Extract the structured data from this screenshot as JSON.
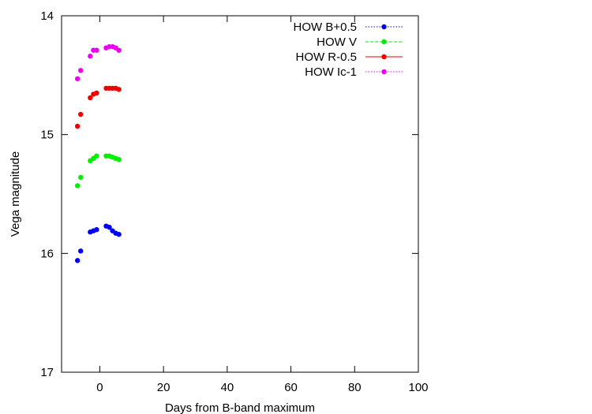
{
  "chart_data": {
    "type": "scatter",
    "title": "",
    "xlabel": "Days from B-band maximum",
    "ylabel": "Vega magnitude",
    "xlim": [
      -12,
      100
    ],
    "ylim": [
      17,
      14
    ],
    "y_inverted": true,
    "xticks": [
      "0",
      "20",
      "40",
      "60",
      "80",
      "100"
    ],
    "xtick_values": [
      0,
      20,
      40,
      60,
      80,
      100
    ],
    "yticks": [
      "14",
      "15",
      "16",
      "17"
    ],
    "ytick_values": [
      14,
      15,
      16,
      17
    ],
    "grid": false,
    "legend_position": "top-right",
    "series": [
      {
        "name": "HOW B+0.5",
        "color": "#0000ee",
        "line_style": "dotted",
        "points": [
          [
            -7,
            16.06
          ],
          [
            -6,
            15.98
          ],
          [
            -3,
            15.82
          ],
          [
            -2,
            15.81
          ],
          [
            -1,
            15.8
          ],
          [
            2,
            15.77
          ],
          [
            3,
            15.78
          ],
          [
            4,
            15.81
          ],
          [
            5,
            15.83
          ],
          [
            6,
            15.84
          ]
        ]
      },
      {
        "name": "HOW V",
        "color": "#00ee00",
        "line_style": "dashed",
        "points": [
          [
            -7,
            15.43
          ],
          [
            -6,
            15.36
          ],
          [
            -3,
            15.22
          ],
          [
            -2,
            15.2
          ],
          [
            -1,
            15.18
          ],
          [
            2,
            15.18
          ],
          [
            3,
            15.18
          ],
          [
            4,
            15.19
          ],
          [
            5,
            15.2
          ],
          [
            6,
            15.21
          ]
        ]
      },
      {
        "name": "HOW R-0.5",
        "color": "#ee0000",
        "line_style": "solid",
        "points": [
          [
            -7,
            14.93
          ],
          [
            -6,
            14.83
          ],
          [
            -3,
            14.69
          ],
          [
            -2,
            14.66
          ],
          [
            -1,
            14.65
          ],
          [
            2,
            14.61
          ],
          [
            3,
            14.61
          ],
          [
            4,
            14.61
          ],
          [
            5,
            14.61
          ],
          [
            6,
            14.62
          ]
        ]
      },
      {
        "name": "HOW Ic-1",
        "color": "#ee00ee",
        "line_style": "dotted",
        "points": [
          [
            -7,
            14.53
          ],
          [
            -6,
            14.46
          ],
          [
            -3,
            14.34
          ],
          [
            -2,
            14.29
          ],
          [
            -1,
            14.29
          ],
          [
            2,
            14.27
          ],
          [
            3,
            14.26
          ],
          [
            4,
            14.26
          ],
          [
            5,
            14.27
          ],
          [
            6,
            14.29
          ]
        ]
      }
    ]
  }
}
